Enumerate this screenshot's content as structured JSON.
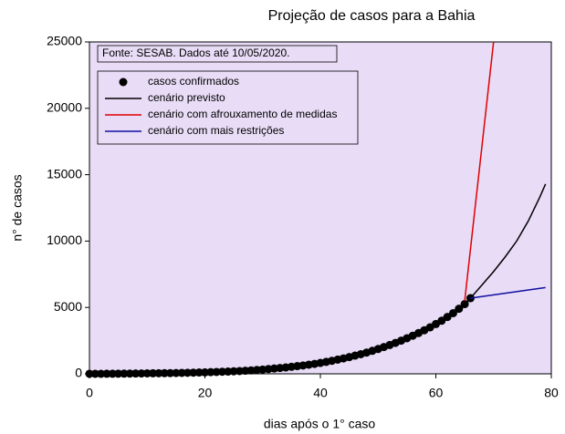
{
  "chart_data": {
    "type": "line",
    "title": "Projeção de casos para a Bahia",
    "xlabel": "dias após o 1° caso",
    "ylabel": "n° de casos",
    "annotation": "Fonte: SESAB. Dados até 10/05/2020.",
    "background": "#e8dcf6",
    "xlim": [
      0,
      80
    ],
    "xticks": [
      0,
      20,
      40,
      60,
      80
    ],
    "ylim": [
      0,
      25000
    ],
    "yticks": [
      0,
      5000,
      10000,
      15000,
      20000,
      25000
    ],
    "series": [
      {
        "name": "casos confirmados",
        "color": "#000000",
        "style": "markers",
        "x": [
          0,
          1,
          2,
          3,
          4,
          5,
          6,
          7,
          8,
          9,
          10,
          11,
          12,
          13,
          14,
          15,
          16,
          17,
          18,
          19,
          20,
          21,
          22,
          23,
          24,
          25,
          26,
          27,
          28,
          29,
          30,
          31,
          32,
          33,
          34,
          35,
          36,
          37,
          38,
          39,
          40,
          41,
          42,
          43,
          44,
          45,
          46,
          47,
          48,
          49,
          50,
          51,
          52,
          53,
          54,
          55,
          56,
          57,
          58,
          59,
          60,
          61,
          62,
          63,
          64,
          65,
          66
        ],
        "values": [
          1,
          2,
          3,
          5,
          8,
          10,
          15,
          20,
          25,
          30,
          35,
          40,
          45,
          50,
          55,
          60,
          70,
          80,
          90,
          100,
          110,
          125,
          140,
          155,
          170,
          190,
          210,
          235,
          260,
          290,
          320,
          360,
          400,
          440,
          480,
          530,
          580,
          630,
          690,
          750,
          820,
          900,
          980,
          1070,
          1160,
          1260,
          1370,
          1480,
          1600,
          1730,
          1870,
          2020,
          2170,
          2330,
          2500,
          2680,
          2870,
          3070,
          3280,
          3500,
          3750,
          4000,
          4280,
          4570,
          4900,
          5250,
          5700
        ]
      },
      {
        "name": "cenário previsto",
        "color": "#000000",
        "style": "line",
        "x": [
          0,
          10,
          20,
          30,
          40,
          50,
          55,
          60,
          65,
          66,
          68,
          70,
          72,
          74,
          76,
          78,
          79
        ],
        "values": [
          1,
          35,
          110,
          320,
          820,
          1870,
          2680,
          3750,
          5250,
          5700,
          6700,
          7700,
          8800,
          10000,
          11500,
          13300,
          14300
        ]
      },
      {
        "name": "cenário com afrouxamento de medidas",
        "color": "#e00000",
        "style": "line",
        "x": [
          65,
          70
        ],
        "values": [
          5500,
          25000
        ]
      },
      {
        "name": "cenário com mais restrições",
        "color": "#1010a0",
        "style": "line",
        "x": [
          66,
          79
        ],
        "values": [
          5700,
          6500
        ]
      }
    ]
  }
}
